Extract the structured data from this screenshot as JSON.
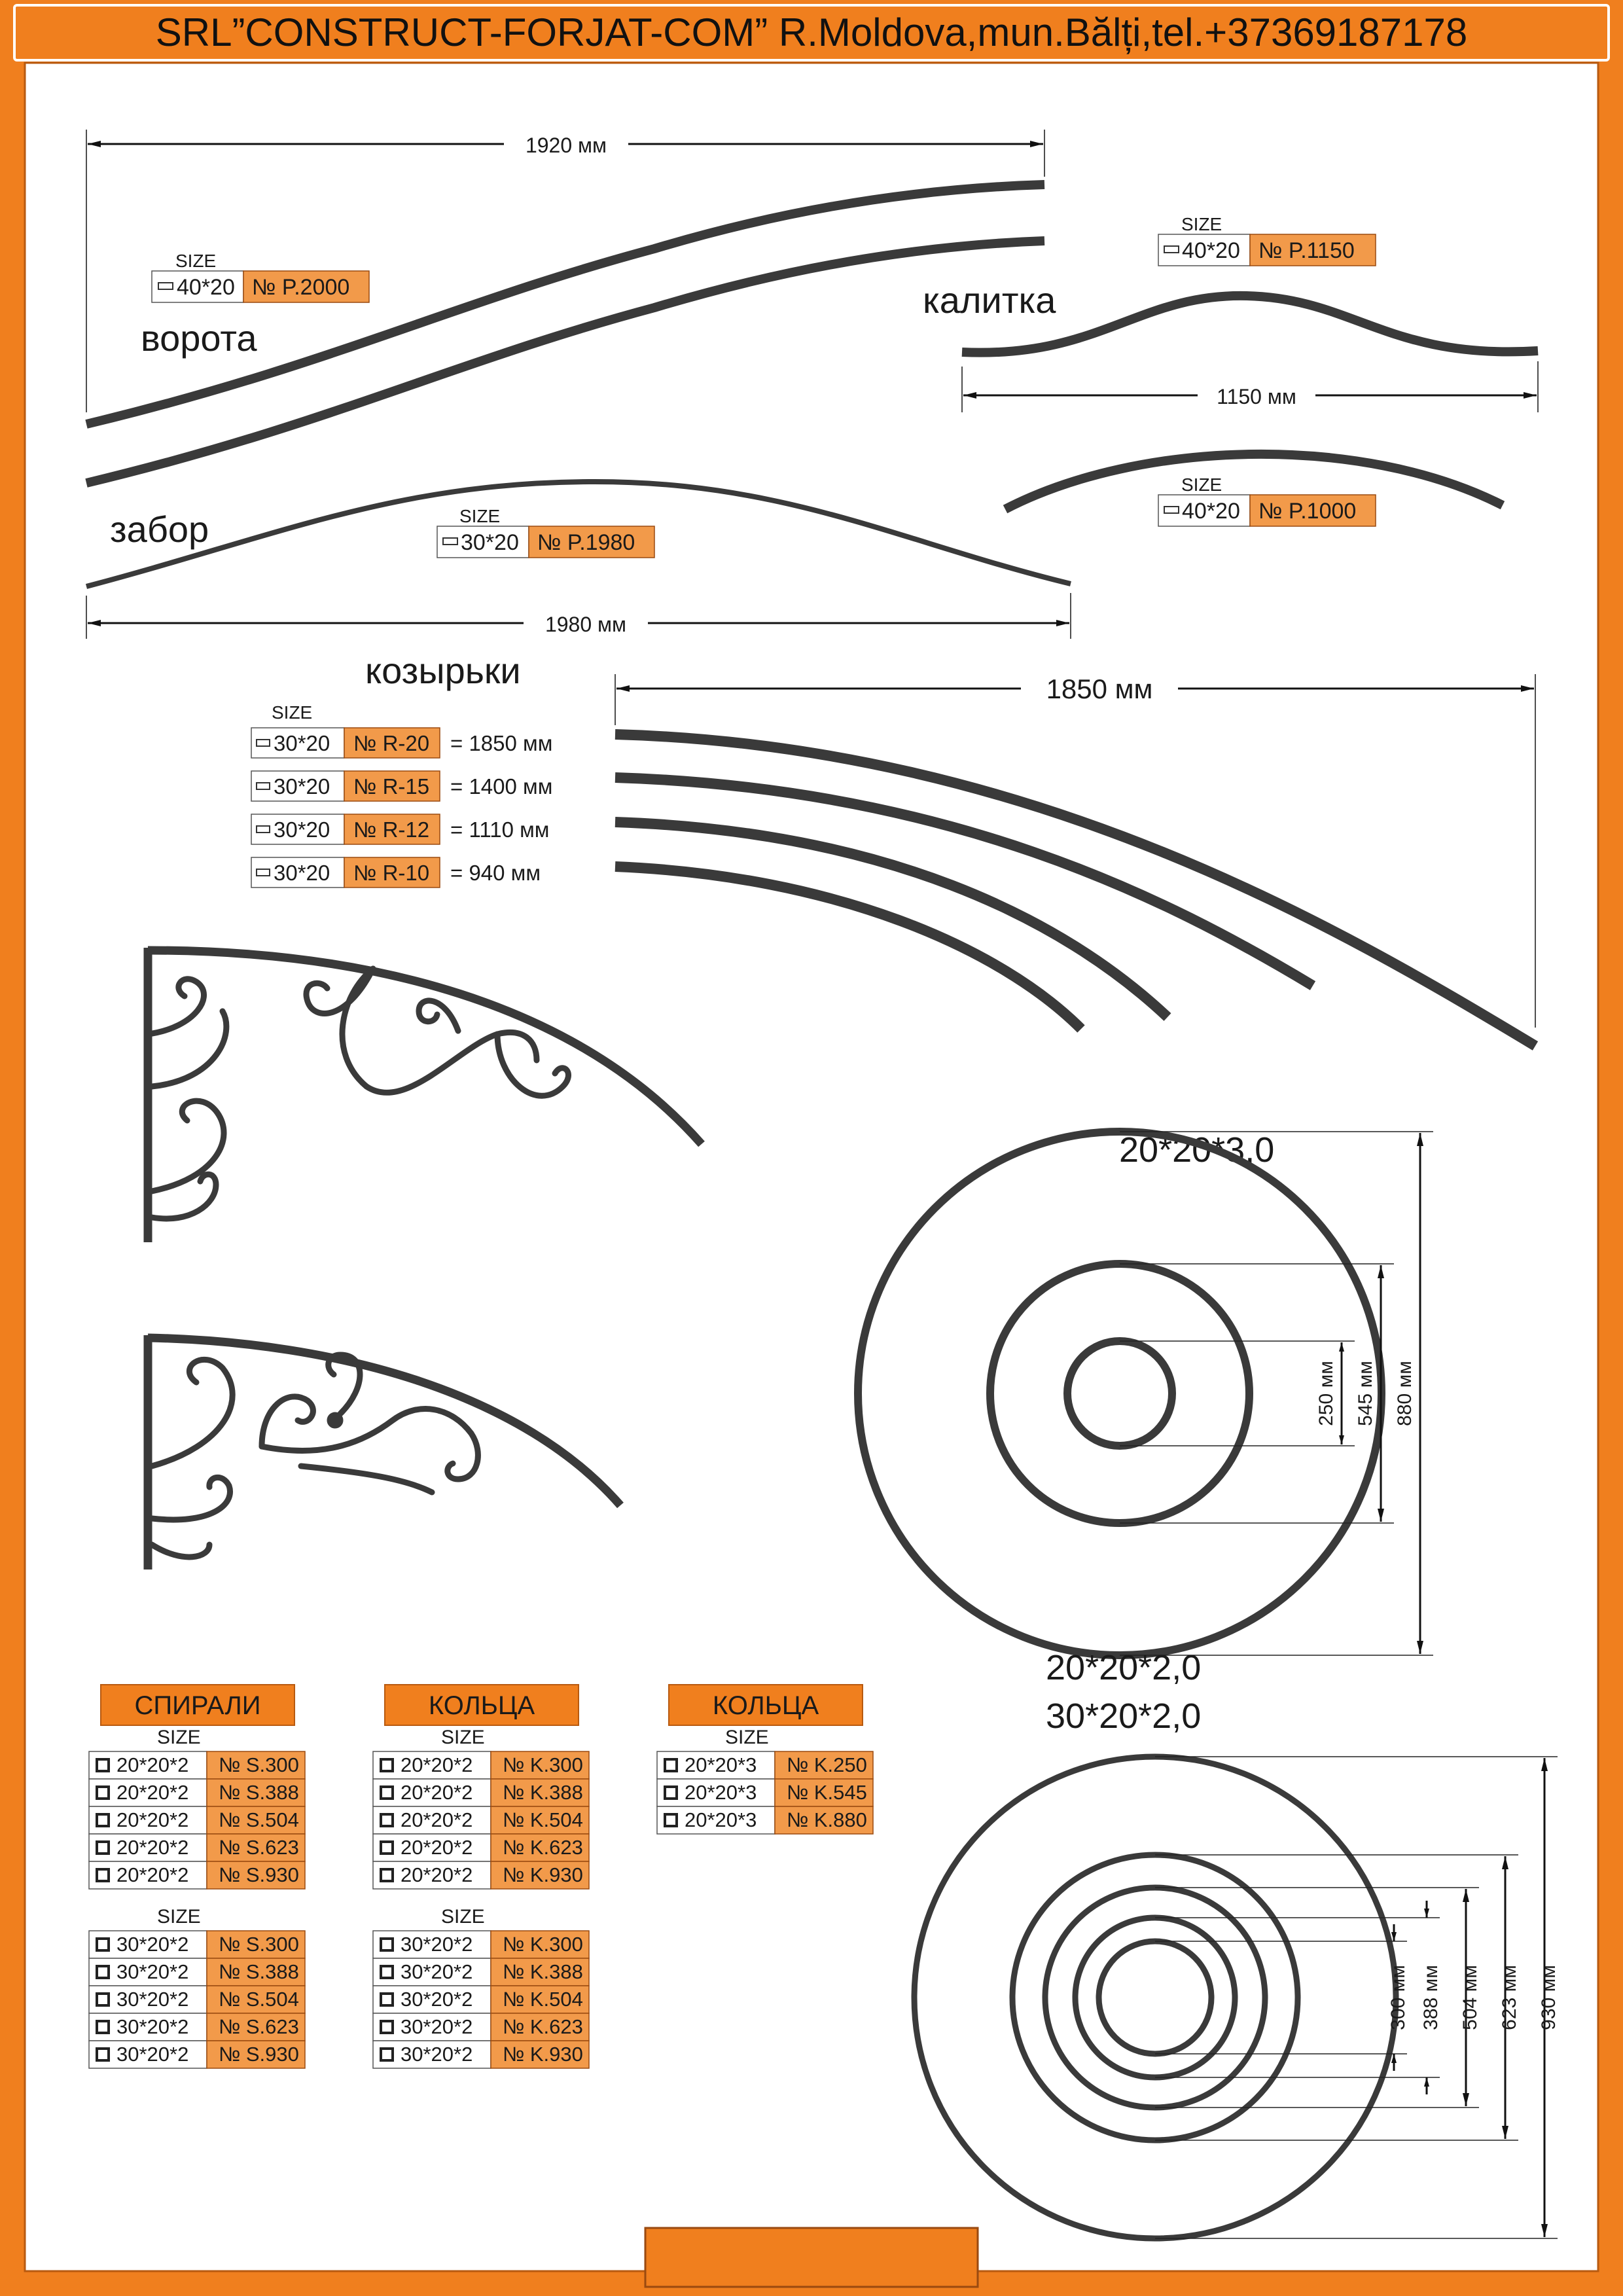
{
  "header": {
    "title": "SRL”CONSTRUCT-FORJAT-COM” R.Moldova,mun.Bălți,tel.+37369187178"
  },
  "colors": {
    "accent": "#f07f1e",
    "label": "#f29a4a",
    "steel": "#3a3a3a"
  },
  "strips": {
    "vorota": {
      "caption": "ворота",
      "size_label": "SIZE",
      "size": "40*20",
      "code": "№ P.2000",
      "dimension": "1920 мм"
    },
    "zabor": {
      "caption": "забор",
      "size_label": "SIZE",
      "size": "30*20",
      "code": "№ P.1980",
      "dimension": "1980 мм"
    },
    "kalitka": {
      "caption": "калитка",
      "size_label": "SIZE",
      "size": "40*20",
      "code": "№ P.1150",
      "dimension": "1150 мм"
    },
    "arc1000": {
      "size_label": "SIZE",
      "size": "40*20",
      "code": "№ P.1000"
    }
  },
  "kozyrki": {
    "caption": "козырьки",
    "size_label": "SIZE",
    "dimension": "1850 мм",
    "items": [
      {
        "size": "30*20",
        "code": "№ R-20",
        "length": "= 1850 мм"
      },
      {
        "size": "30*20",
        "code": "№ R-15",
        "length": "= 1400 мм"
      },
      {
        "size": "30*20",
        "code": "№ R-12",
        "length": "= 1110 мм"
      },
      {
        "size": "30*20",
        "code": "№ R-10",
        "length": "= 940 мм"
      }
    ]
  },
  "rings3": {
    "title": "20*20*3,0",
    "dims": [
      "250 мм",
      "545 мм",
      "880 мм"
    ]
  },
  "rings2": {
    "title_line1": "20*20*2,0",
    "title_line2": "30*20*2,0",
    "dims": [
      "300 мм",
      "388 мм",
      "504 мм",
      "623 мм",
      "930 мм"
    ]
  },
  "tables": {
    "spirali": {
      "header": "СПИРАЛИ",
      "size_label": "SIZE",
      "group1": [
        {
          "size": "20*20*2",
          "code": "№ S.300"
        },
        {
          "size": "20*20*2",
          "code": "№ S.388"
        },
        {
          "size": "20*20*2",
          "code": "№ S.504"
        },
        {
          "size": "20*20*2",
          "code": "№ S.623"
        },
        {
          "size": "20*20*2",
          "code": "№ S.930"
        }
      ],
      "group2": [
        {
          "size": "30*20*2",
          "code": "№ S.300"
        },
        {
          "size": "30*20*2",
          "code": "№ S.388"
        },
        {
          "size": "30*20*2",
          "code": "№ S.504"
        },
        {
          "size": "30*20*2",
          "code": "№ S.623"
        },
        {
          "size": "30*20*2",
          "code": "№ S.930"
        }
      ]
    },
    "koltsa1": {
      "header": "КОЛЬЦА",
      "size_label": "SIZE",
      "group1": [
        {
          "size": "20*20*2",
          "code": "№ K.300"
        },
        {
          "size": "20*20*2",
          "code": "№ K.388"
        },
        {
          "size": "20*20*2",
          "code": "№ K.504"
        },
        {
          "size": "20*20*2",
          "code": "№ K.623"
        },
        {
          "size": "20*20*2",
          "code": "№ K.930"
        }
      ],
      "group2": [
        {
          "size": "30*20*2",
          "code": "№ K.300"
        },
        {
          "size": "30*20*2",
          "code": "№ K.388"
        },
        {
          "size": "30*20*2",
          "code": "№ K.504"
        },
        {
          "size": "30*20*2",
          "code": "№ K.623"
        },
        {
          "size": "30*20*2",
          "code": "№ K.930"
        }
      ]
    },
    "koltsa2": {
      "header": "КОЛЬЦА",
      "size_label": "SIZE",
      "group1": [
        {
          "size": "20*20*3",
          "code": "№ K.250"
        },
        {
          "size": "20*20*3",
          "code": "№ K.545"
        },
        {
          "size": "20*20*3",
          "code": "№ K.880"
        }
      ]
    }
  }
}
